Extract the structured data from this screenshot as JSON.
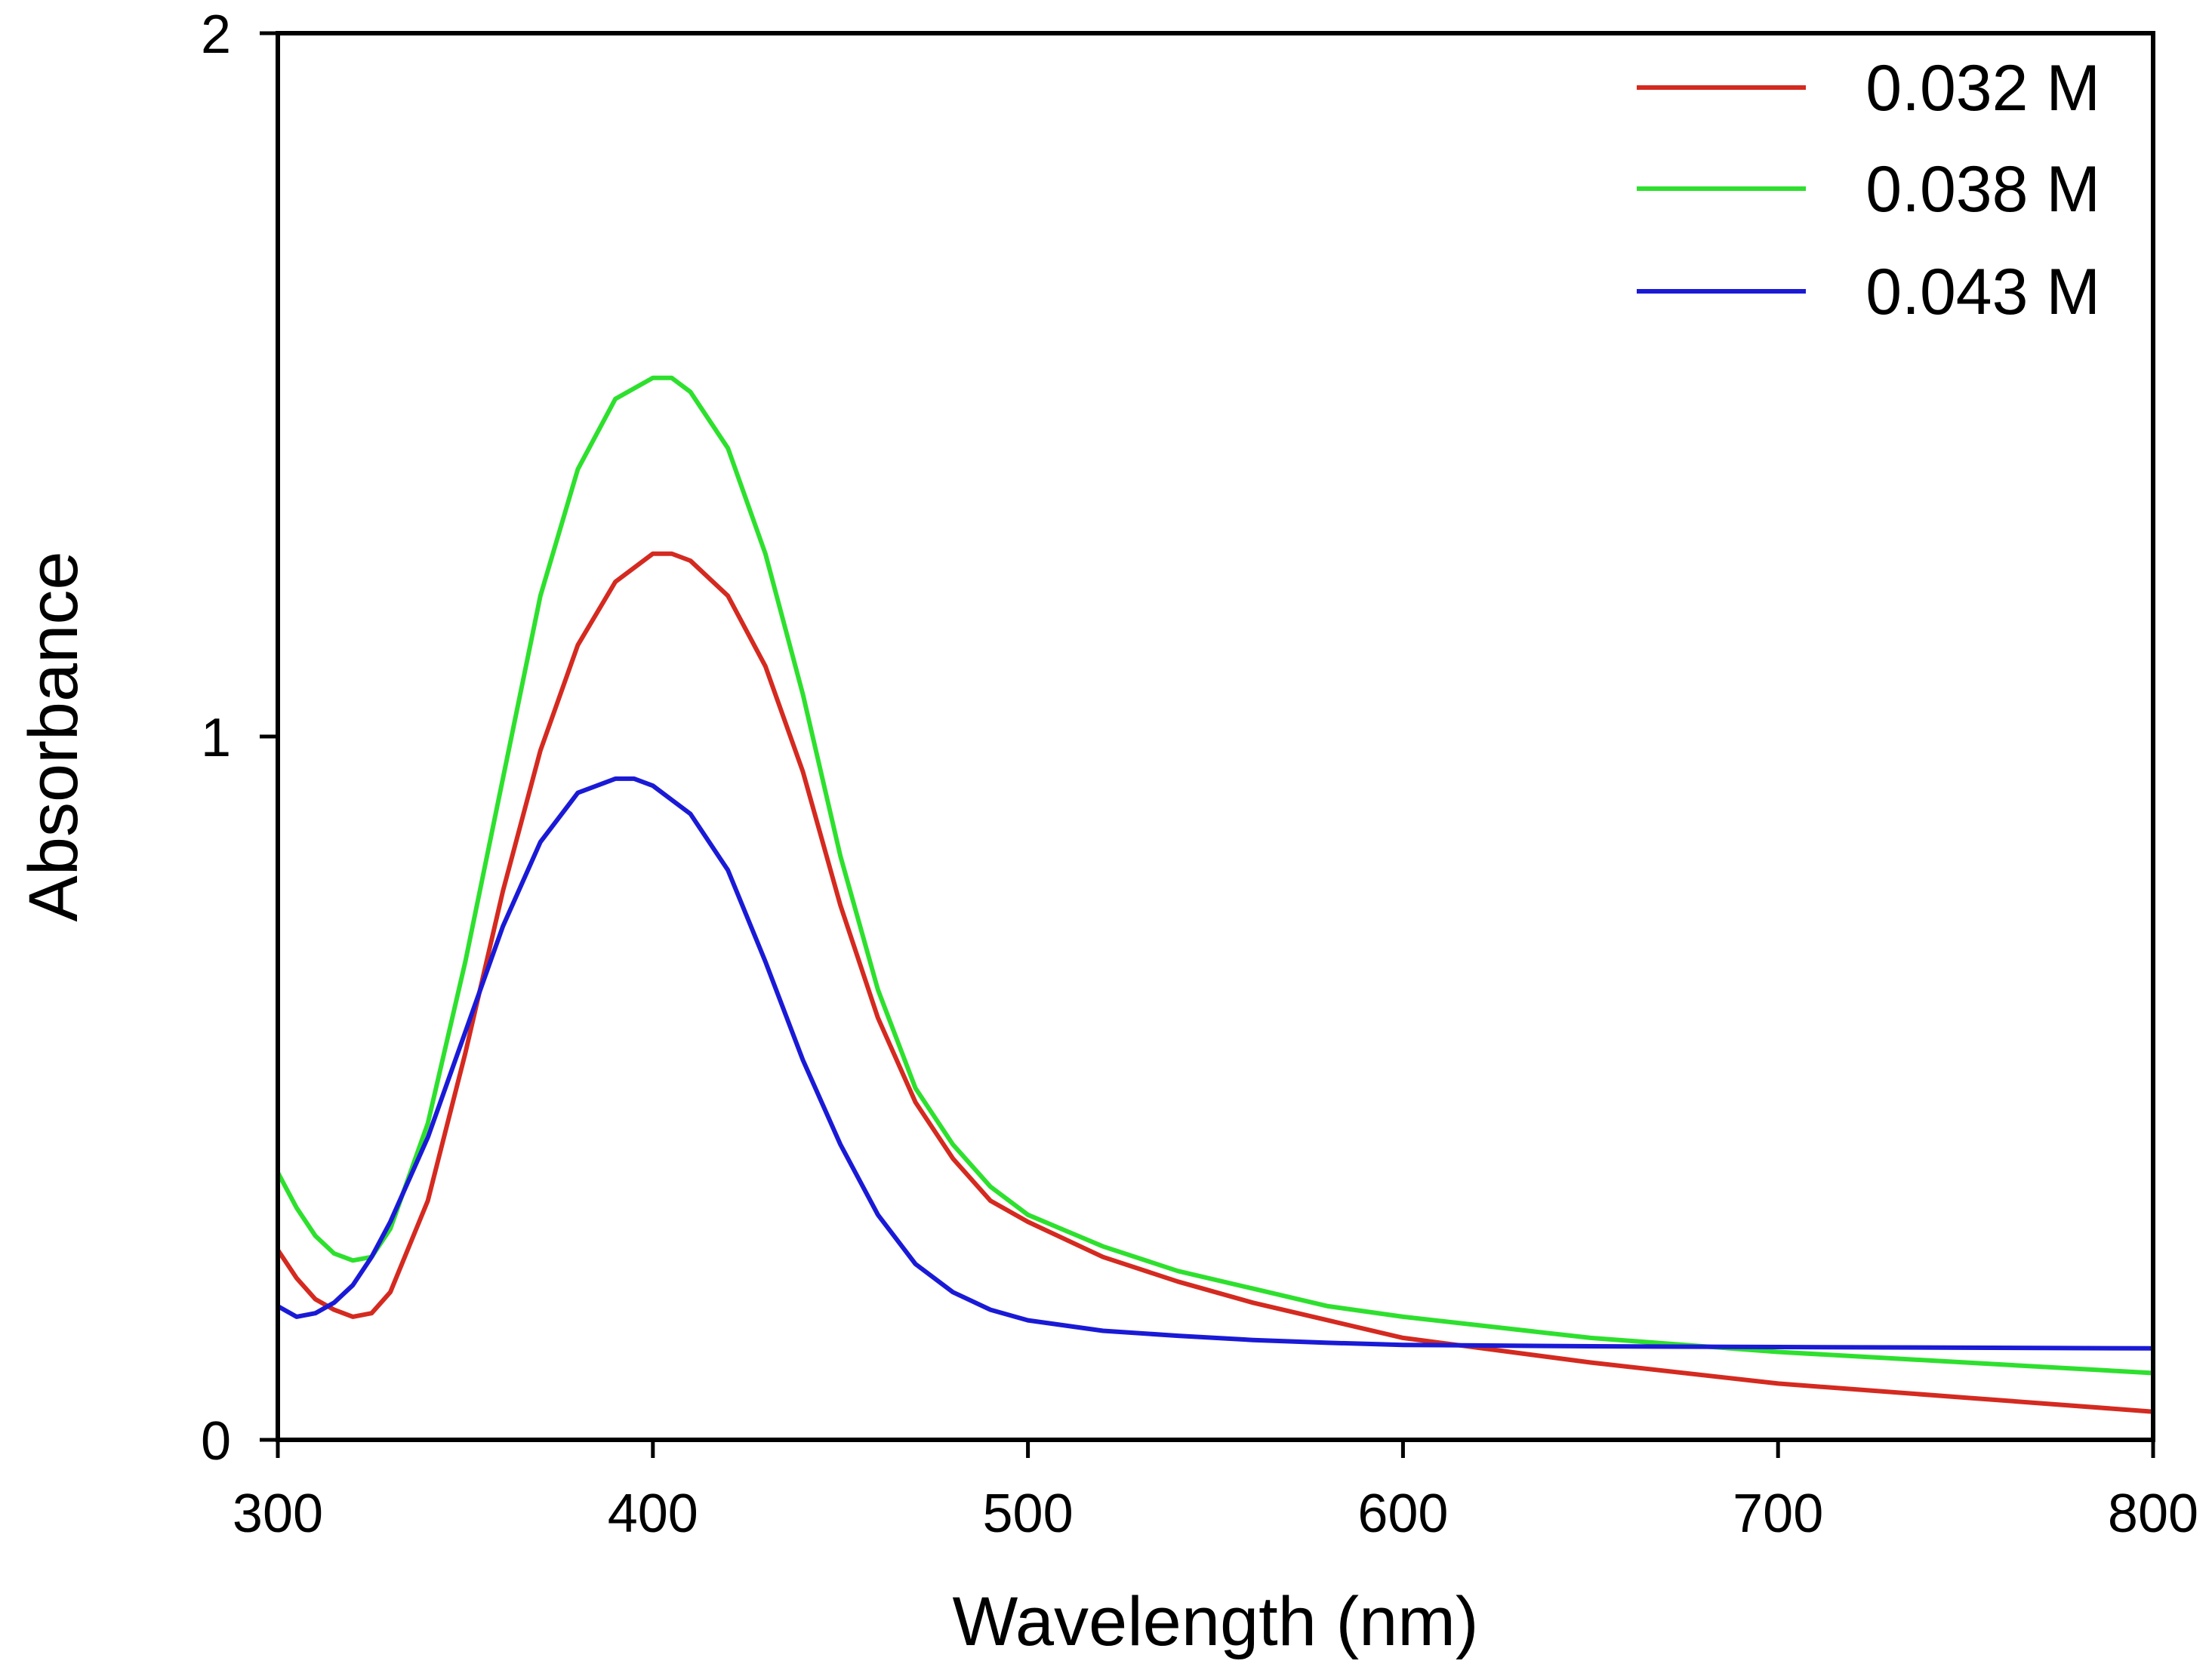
{
  "chart_data": {
    "type": "line",
    "title": "",
    "xlabel": "Wavelength (nm)",
    "ylabel": "Absorbance",
    "xlim": [
      300,
      800
    ],
    "ylim": [
      0,
      2
    ],
    "xticks": [
      300,
      400,
      500,
      600,
      700,
      800
    ],
    "yticks": [
      0,
      1,
      2
    ],
    "x_tick_labels": [
      "300",
      "400",
      "500",
      "600",
      "700",
      "800"
    ],
    "y_tick_labels": [
      "0",
      "1",
      "2"
    ],
    "grid": false,
    "legend_position": "top-right",
    "series": [
      {
        "name": "0.032 M",
        "color": "#d42a20",
        "x": [
          300,
          305,
          310,
          315,
          320,
          325,
          330,
          340,
          350,
          360,
          370,
          380,
          390,
          400,
          405,
          410,
          420,
          430,
          440,
          450,
          460,
          470,
          480,
          490,
          500,
          520,
          540,
          560,
          580,
          600,
          650,
          700,
          750,
          800
        ],
        "y": [
          0.27,
          0.23,
          0.2,
          0.185,
          0.175,
          0.18,
          0.21,
          0.34,
          0.55,
          0.78,
          0.98,
          1.13,
          1.22,
          1.26,
          1.26,
          1.25,
          1.2,
          1.1,
          0.95,
          0.76,
          0.6,
          0.48,
          0.4,
          0.34,
          0.31,
          0.26,
          0.225,
          0.195,
          0.17,
          0.145,
          0.11,
          0.08,
          0.06,
          0.04
        ]
      },
      {
        "name": "0.038 M",
        "color": "#2ee02e",
        "x": [
          300,
          305,
          310,
          315,
          320,
          325,
          330,
          340,
          350,
          360,
          370,
          380,
          390,
          400,
          405,
          410,
          420,
          430,
          440,
          450,
          460,
          470,
          480,
          490,
          500,
          520,
          540,
          560,
          580,
          600,
          650,
          700,
          750,
          800
        ],
        "y": [
          0.38,
          0.33,
          0.29,
          0.265,
          0.255,
          0.26,
          0.3,
          0.45,
          0.68,
          0.94,
          1.2,
          1.38,
          1.48,
          1.51,
          1.51,
          1.49,
          1.41,
          1.26,
          1.06,
          0.83,
          0.64,
          0.5,
          0.42,
          0.36,
          0.32,
          0.275,
          0.24,
          0.215,
          0.19,
          0.175,
          0.145,
          0.125,
          0.11,
          0.095
        ]
      },
      {
        "name": "0.043 M",
        "color": "#1a1ad6",
        "x": [
          300,
          305,
          310,
          315,
          320,
          325,
          330,
          340,
          350,
          360,
          370,
          380,
          390,
          395,
          400,
          410,
          420,
          430,
          440,
          450,
          460,
          470,
          480,
          490,
          500,
          520,
          540,
          560,
          580,
          600,
          650,
          700,
          750,
          800
        ],
        "y": [
          0.19,
          0.175,
          0.18,
          0.195,
          0.22,
          0.26,
          0.31,
          0.43,
          0.58,
          0.73,
          0.85,
          0.92,
          0.94,
          0.94,
          0.93,
          0.89,
          0.81,
          0.68,
          0.54,
          0.42,
          0.32,
          0.25,
          0.21,
          0.185,
          0.17,
          0.155,
          0.148,
          0.142,
          0.138,
          0.135,
          0.133,
          0.132,
          0.131,
          0.13
        ]
      }
    ]
  }
}
